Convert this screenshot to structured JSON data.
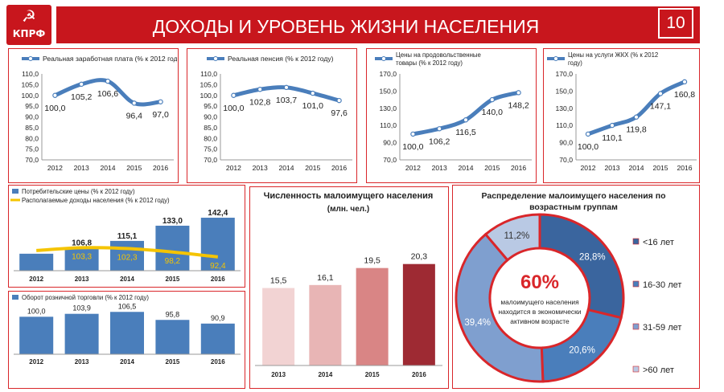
{
  "header": {
    "title": "ДОХОДЫ И УРОВЕНЬ ЖИЗНИ НАСЕЛЕНИЯ",
    "page_number": "10",
    "logo_text": "КПРФ",
    "logo_mark": "☭"
  },
  "chart_data": [
    {
      "id": "wage",
      "type": "line",
      "legend": "Реальная заработная плата (% к 2012 году)",
      "categories": [
        "2012",
        "2013",
        "2014",
        "2015",
        "2016"
      ],
      "values": [
        100.0,
        105.2,
        106.6,
        96.4,
        97.0
      ],
      "data_labels": [
        "100,0",
        "105,2",
        "106,6",
        "96,4",
        "97,0"
      ],
      "ylim": [
        70,
        110
      ],
      "yticks": [
        "70,0",
        "75,0",
        "80,0",
        "85,0",
        "90,0",
        "95,0",
        "100,0",
        "105,0",
        "110,0"
      ],
      "color": "#4a7ebb"
    },
    {
      "id": "pension",
      "type": "line",
      "legend": "Реальная пенсия (% к 2012 году)",
      "categories": [
        "2012",
        "2013",
        "2014",
        "2015",
        "2016"
      ],
      "values": [
        100.0,
        102.8,
        103.7,
        101.0,
        97.6
      ],
      "data_labels": [
        "100,0",
        "102,8",
        "103,7",
        "101,0",
        "97,6"
      ],
      "ylim": [
        70,
        110
      ],
      "yticks": [
        "70,0",
        "75,0",
        "80,0",
        "85,0",
        "90,0",
        "95,0",
        "100,0",
        "105,0",
        "110,0"
      ],
      "color": "#4a7ebb"
    },
    {
      "id": "food",
      "type": "line",
      "legend_lines": [
        "Цены на продовольственные",
        "товары (% к 2012 году)"
      ],
      "categories": [
        "2012",
        "2013",
        "2014",
        "2015",
        "2016"
      ],
      "values": [
        100.0,
        106.2,
        116.5,
        140.0,
        148.2
      ],
      "data_labels": [
        "100,0",
        "106,2",
        "116,5",
        "140,0",
        "148,2"
      ],
      "ylim": [
        70,
        170
      ],
      "yticks": [
        "70,0",
        "90,0",
        "110,0",
        "130,0",
        "150,0",
        "170,0"
      ],
      "color": "#4a7ebb"
    },
    {
      "id": "housing",
      "type": "line",
      "legend_lines": [
        "Цены на услуги ЖКХ (% к 2012",
        "году)"
      ],
      "categories": [
        "2012",
        "2013",
        "2014",
        "2015",
        "2016"
      ],
      "values": [
        100.0,
        110.1,
        119.8,
        147.1,
        160.8
      ],
      "data_labels": [
        "100,0",
        "110,1",
        "119,8",
        "147,1",
        "160,8"
      ],
      "ylim": [
        70,
        170
      ],
      "yticks": [
        "70,0",
        "90,0",
        "110,0",
        "130,0",
        "150,0",
        "170,0"
      ],
      "color": "#4a7ebb"
    },
    {
      "id": "consumer",
      "type": "bar",
      "categories": [
        "2012",
        "2013",
        "2014",
        "2015",
        "2016"
      ],
      "series": [
        {
          "name": "Потребительские цены (% к 2012 году)",
          "type": "bar",
          "values": [
            100.0,
            106.8,
            115.1,
            133.0,
            142.4
          ],
          "data_labels": [
            "",
            "106,8",
            "115,1",
            "133,0",
            "142,4"
          ],
          "color": "#4a7ebb"
        },
        {
          "name": "Располагаемые доходы населения (% к 2012 году)",
          "type": "line",
          "values": [
            100.0,
            103.3,
            102.3,
            98.2,
            92.4
          ],
          "data_labels": [
            "",
            "103,3",
            "102,3",
            "98,2",
            "92,4"
          ],
          "color": "#f5c400"
        }
      ]
    },
    {
      "id": "retail",
      "type": "bar",
      "legend": "Оборот розничной торговли (% к 2012 году)",
      "categories": [
        "2012",
        "2013",
        "2014",
        "2015",
        "2016"
      ],
      "values": [
        100.0,
        103.9,
        106.5,
        95.8,
        90.9
      ],
      "data_labels": [
        "100,0",
        "103,9",
        "106,5",
        "95,8",
        "90,9"
      ],
      "color": "#4a7ebb"
    },
    {
      "id": "poor",
      "type": "bar",
      "title": "Численность малоимущего населения",
      "subtitle": "(млн. чел.)",
      "categories": [
        "2013",
        "2014",
        "2015",
        "2016"
      ],
      "values": [
        15.5,
        16.1,
        19.5,
        20.3
      ],
      "data_labels": [
        "15,5",
        "16,1",
        "19,5",
        "20,3"
      ],
      "colors": [
        "#f2d3d3",
        "#e8b5b5",
        "#d98585",
        "#9e2a33"
      ]
    },
    {
      "id": "age",
      "type": "pie",
      "title_lines": [
        "Распределение малоимущего населения по",
        "возрастным группам"
      ],
      "slices": [
        {
          "label": "<16 лет",
          "value": 28.8,
          "text": "28,8%",
          "color": "#3a659e"
        },
        {
          "label": "16-30 лет",
          "value": 20.6,
          "text": "20,6%",
          "color": "#4a7ebb"
        },
        {
          "label": "31-59 лет",
          "value": 39.4,
          "text": "39,4%",
          "color": "#7f9fcf"
        },
        {
          "label": ">60 лет",
          "value": 11.2,
          "text": "11,2%",
          "color": "#b9c9e4"
        }
      ],
      "center_big": "60%",
      "center_lines": [
        "малоимущего населения",
        "находится в экономически",
        "активном возрасте"
      ]
    }
  ]
}
